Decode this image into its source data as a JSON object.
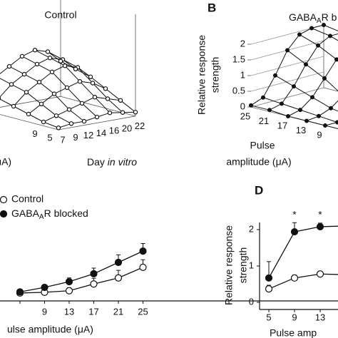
{
  "chart_data": [
    {
      "type": "surface",
      "title": "Control",
      "xlabel": {
        "main": "Day",
        "italic": "in vitro"
      },
      "ylabel": "μA)",
      "x": [
        7,
        9,
        12,
        14,
        16,
        20,
        22
      ],
      "y": [
        5,
        9,
        null,
        null,
        null,
        null
      ],
      "values": [
        [
          0.05,
          0.1,
          0.1,
          0.15,
          0.2,
          0.15,
          0.1
        ],
        [
          0.1,
          0.2,
          0.3,
          0.4,
          0.5,
          0.4,
          0.3
        ],
        [
          0.2,
          0.4,
          0.6,
          0.7,
          0.8,
          0.7,
          0.5
        ],
        [
          0.3,
          0.6,
          0.8,
          1.0,
          1.1,
          1.0,
          0.7
        ],
        [
          0.4,
          0.7,
          0.9,
          1.1,
          1.2,
          1.1,
          0.8
        ],
        [
          0.5,
          0.8,
          1.0,
          1.2,
          1.3,
          1.2,
          0.9
        ]
      ],
      "marker": "open"
    },
    {
      "type": "surface",
      "label": "B",
      "title": {
        "main": "GABA",
        "sub": "A",
        "rest": "R b"
      },
      "zlabel": [
        "Relative response",
        "strength"
      ],
      "xlabel": [
        "Pulse",
        "amplitude (μA)"
      ],
      "y": [
        25,
        21,
        17,
        13,
        9,
        null
      ],
      "zlim": [
        0,
        2
      ],
      "zticks": [
        0,
        0.5,
        1,
        1.5,
        2
      ],
      "values": [
        [
          0.05,
          0.2,
          0.8,
          1.5,
          1.9,
          2.0,
          2.0
        ],
        [
          0.05,
          0.15,
          0.6,
          1.2,
          1.7,
          1.9,
          1.9
        ],
        [
          0,
          0.1,
          0.4,
          0.9,
          1.4,
          1.7,
          1.8
        ],
        [
          0,
          0.05,
          0.2,
          0.5,
          0.9,
          1.3,
          1.5
        ],
        [
          0,
          0,
          0.1,
          0.3,
          0.6,
          0.9,
          1.1
        ],
        [
          0,
          0,
          0.05,
          0.1,
          0.3,
          0.5,
          0.7
        ]
      ],
      "marker": "filled"
    },
    {
      "type": "line",
      "xlabel": "ulse amplitude (μA)",
      "categories": [
        null,
        9,
        13,
        17,
        21,
        25
      ],
      "ylim": [
        0,
        2
      ],
      "series": [
        {
          "name": "Control",
          "marker": "open",
          "values": [
            0.02,
            0.04,
            0.08,
            0.26,
            0.42,
            0.7
          ],
          "errors": [
            0.02,
            0.04,
            0.08,
            0.15,
            0.2,
            0.2
          ]
        },
        {
          "name": {
            "main": "GABA",
            "sub": "A",
            "rest": "R blocked"
          },
          "marker": "filled",
          "values": [
            0.05,
            0.17,
            0.32,
            0.53,
            0.83,
            1.13
          ],
          "errors": [
            0.02,
            0.05,
            0.1,
            0.15,
            0.2,
            0.2
          ]
        }
      ]
    },
    {
      "type": "line",
      "label": "D",
      "ylabel": [
        "Relative response",
        "strength"
      ],
      "xlabel": "Pulse amp",
      "categories": [
        5,
        9,
        13,
        null
      ],
      "ylim": [
        0,
        2
      ],
      "yticks": [
        0,
        1,
        2
      ],
      "annotations": [
        {
          "text": "*",
          "at": 1
        },
        {
          "text": "*",
          "at": 2
        }
      ],
      "series": [
        {
          "marker": "open",
          "values": [
            0.37,
            0.67,
            0.78,
            0.76
          ],
          "errors": [
            0.1,
            0.08,
            0.07,
            0.07
          ]
        },
        {
          "marker": "filled",
          "values": [
            0.67,
            1.94,
            2.08,
            2.1
          ],
          "errors": [
            0.45,
            0.25,
            0.1,
            0.1
          ]
        }
      ]
    }
  ]
}
